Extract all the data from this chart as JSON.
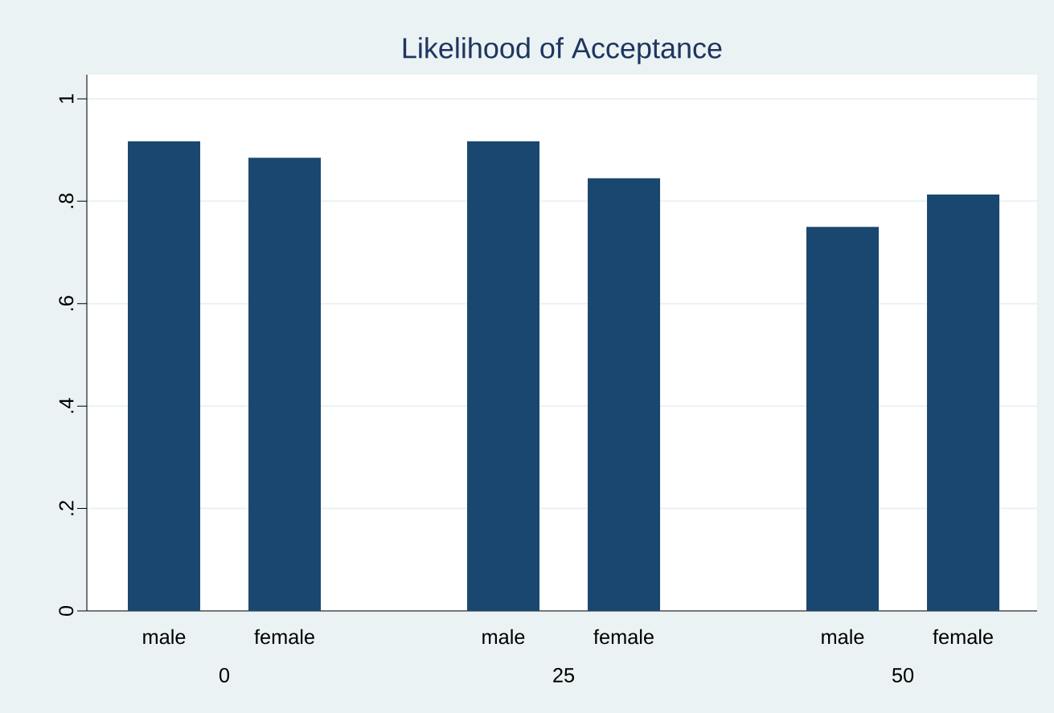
{
  "chart_data": {
    "type": "bar",
    "title": "Likelihood of Acceptance",
    "categories": [
      "male",
      "female",
      "male",
      "female",
      "male",
      "female"
    ],
    "values": [
      0.917,
      0.885,
      0.917,
      0.845,
      0.75,
      0.813
    ],
    "color": "#1a476f",
    "ylim": [
      0,
      1.047
    ],
    "yticks": [
      0,
      {
        "value": 0.2,
        "label": ".2"
      },
      {
        "value": 0.4,
        "label": ".4"
      },
      {
        "value": 0.6,
        "label": ".6"
      },
      {
        "value": 0.8,
        "label": ".8"
      },
      1
    ],
    "grid": "y",
    "annotations": [
      "0",
      "25",
      "50"
    ]
  }
}
